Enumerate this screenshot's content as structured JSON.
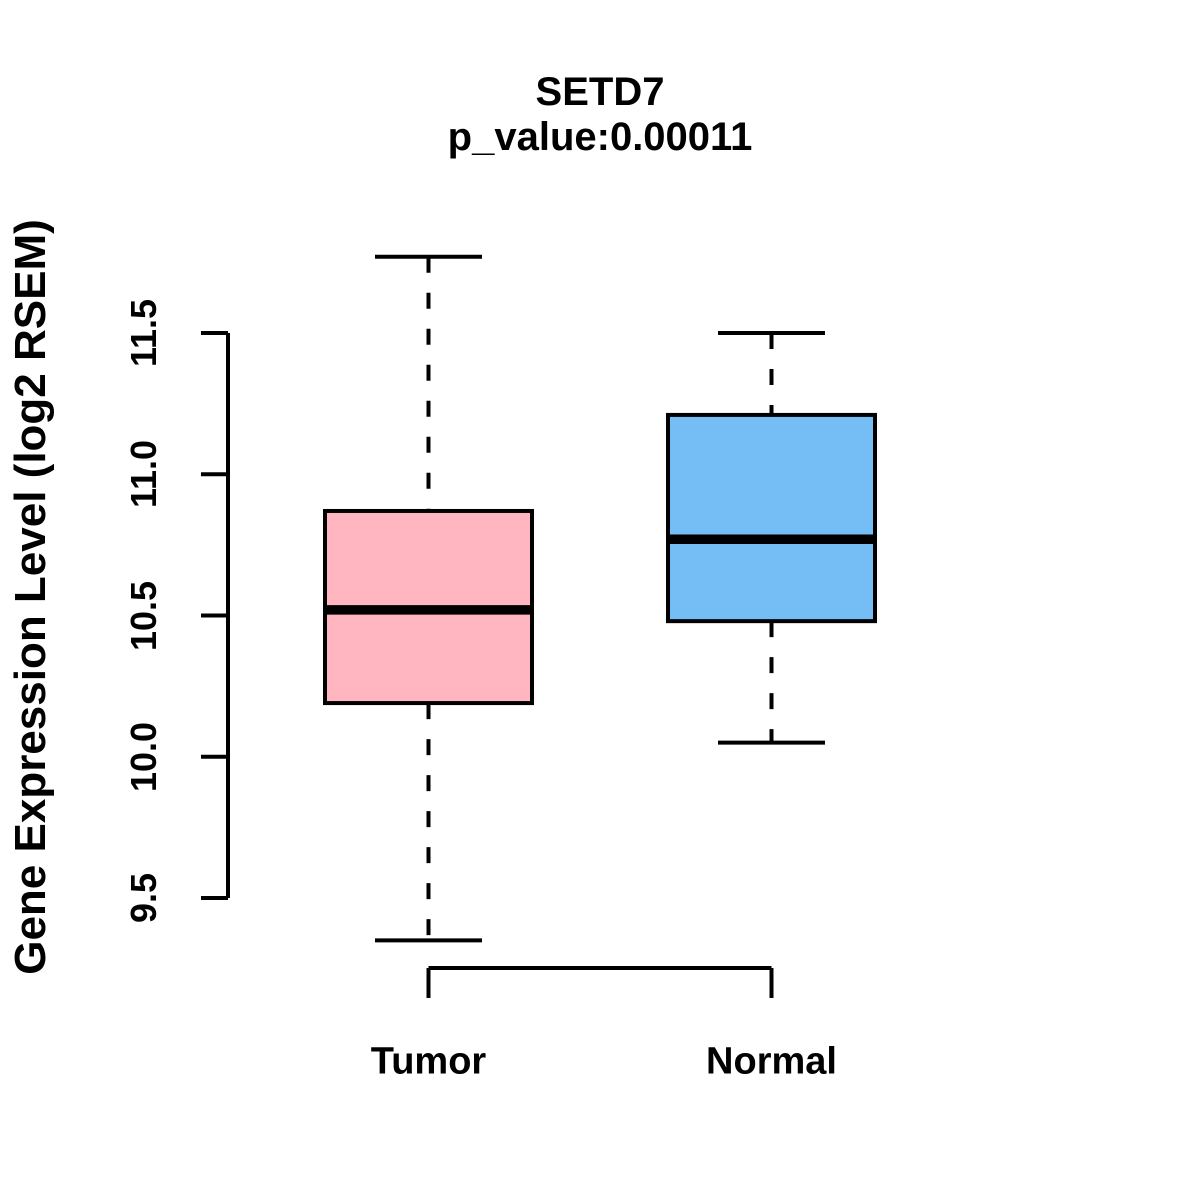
{
  "title": "SETD7",
  "subtitle": "p_value:0.00011",
  "y_axis": {
    "label": "Gene Expression Level (log2 RSEM)",
    "tick_labels": [
      "9.5",
      "10.0",
      "10.5",
      "11.0",
      "11.5"
    ]
  },
  "colors": {
    "tumor_fill": "#FFB6C1",
    "normal_fill": "#74BDF5",
    "stroke": "#000000"
  },
  "chart_data": {
    "type": "boxplot",
    "title": "SETD7",
    "subtitle": "p_value:0.00011",
    "ylabel": "Gene Expression Level (log2 RSEM)",
    "categories": [
      "Tumor",
      "Normal"
    ],
    "yticks": [
      {
        "label": "9.5",
        "value": 9.5
      },
      {
        "label": "10.0",
        "value": 10.0
      },
      {
        "label": "10.5",
        "value": 10.5
      },
      {
        "label": "11.0",
        "value": 11.0
      },
      {
        "label": "11.5",
        "value": 11.5
      }
    ],
    "ylim": [
      9.3,
      11.8
    ],
    "grid": false,
    "legend": "none",
    "series": [
      {
        "name": "Tumor",
        "color": "#FFB6C1",
        "whisker_low": 9.35,
        "q1": 10.19,
        "median": 10.52,
        "q3": 10.87,
        "whisker_high": 11.77
      },
      {
        "name": "Normal",
        "color": "#74BDF5",
        "whisker_low": 10.05,
        "q1": 10.48,
        "median": 10.77,
        "q3": 11.21,
        "whisker_high": 11.5
      }
    ]
  }
}
